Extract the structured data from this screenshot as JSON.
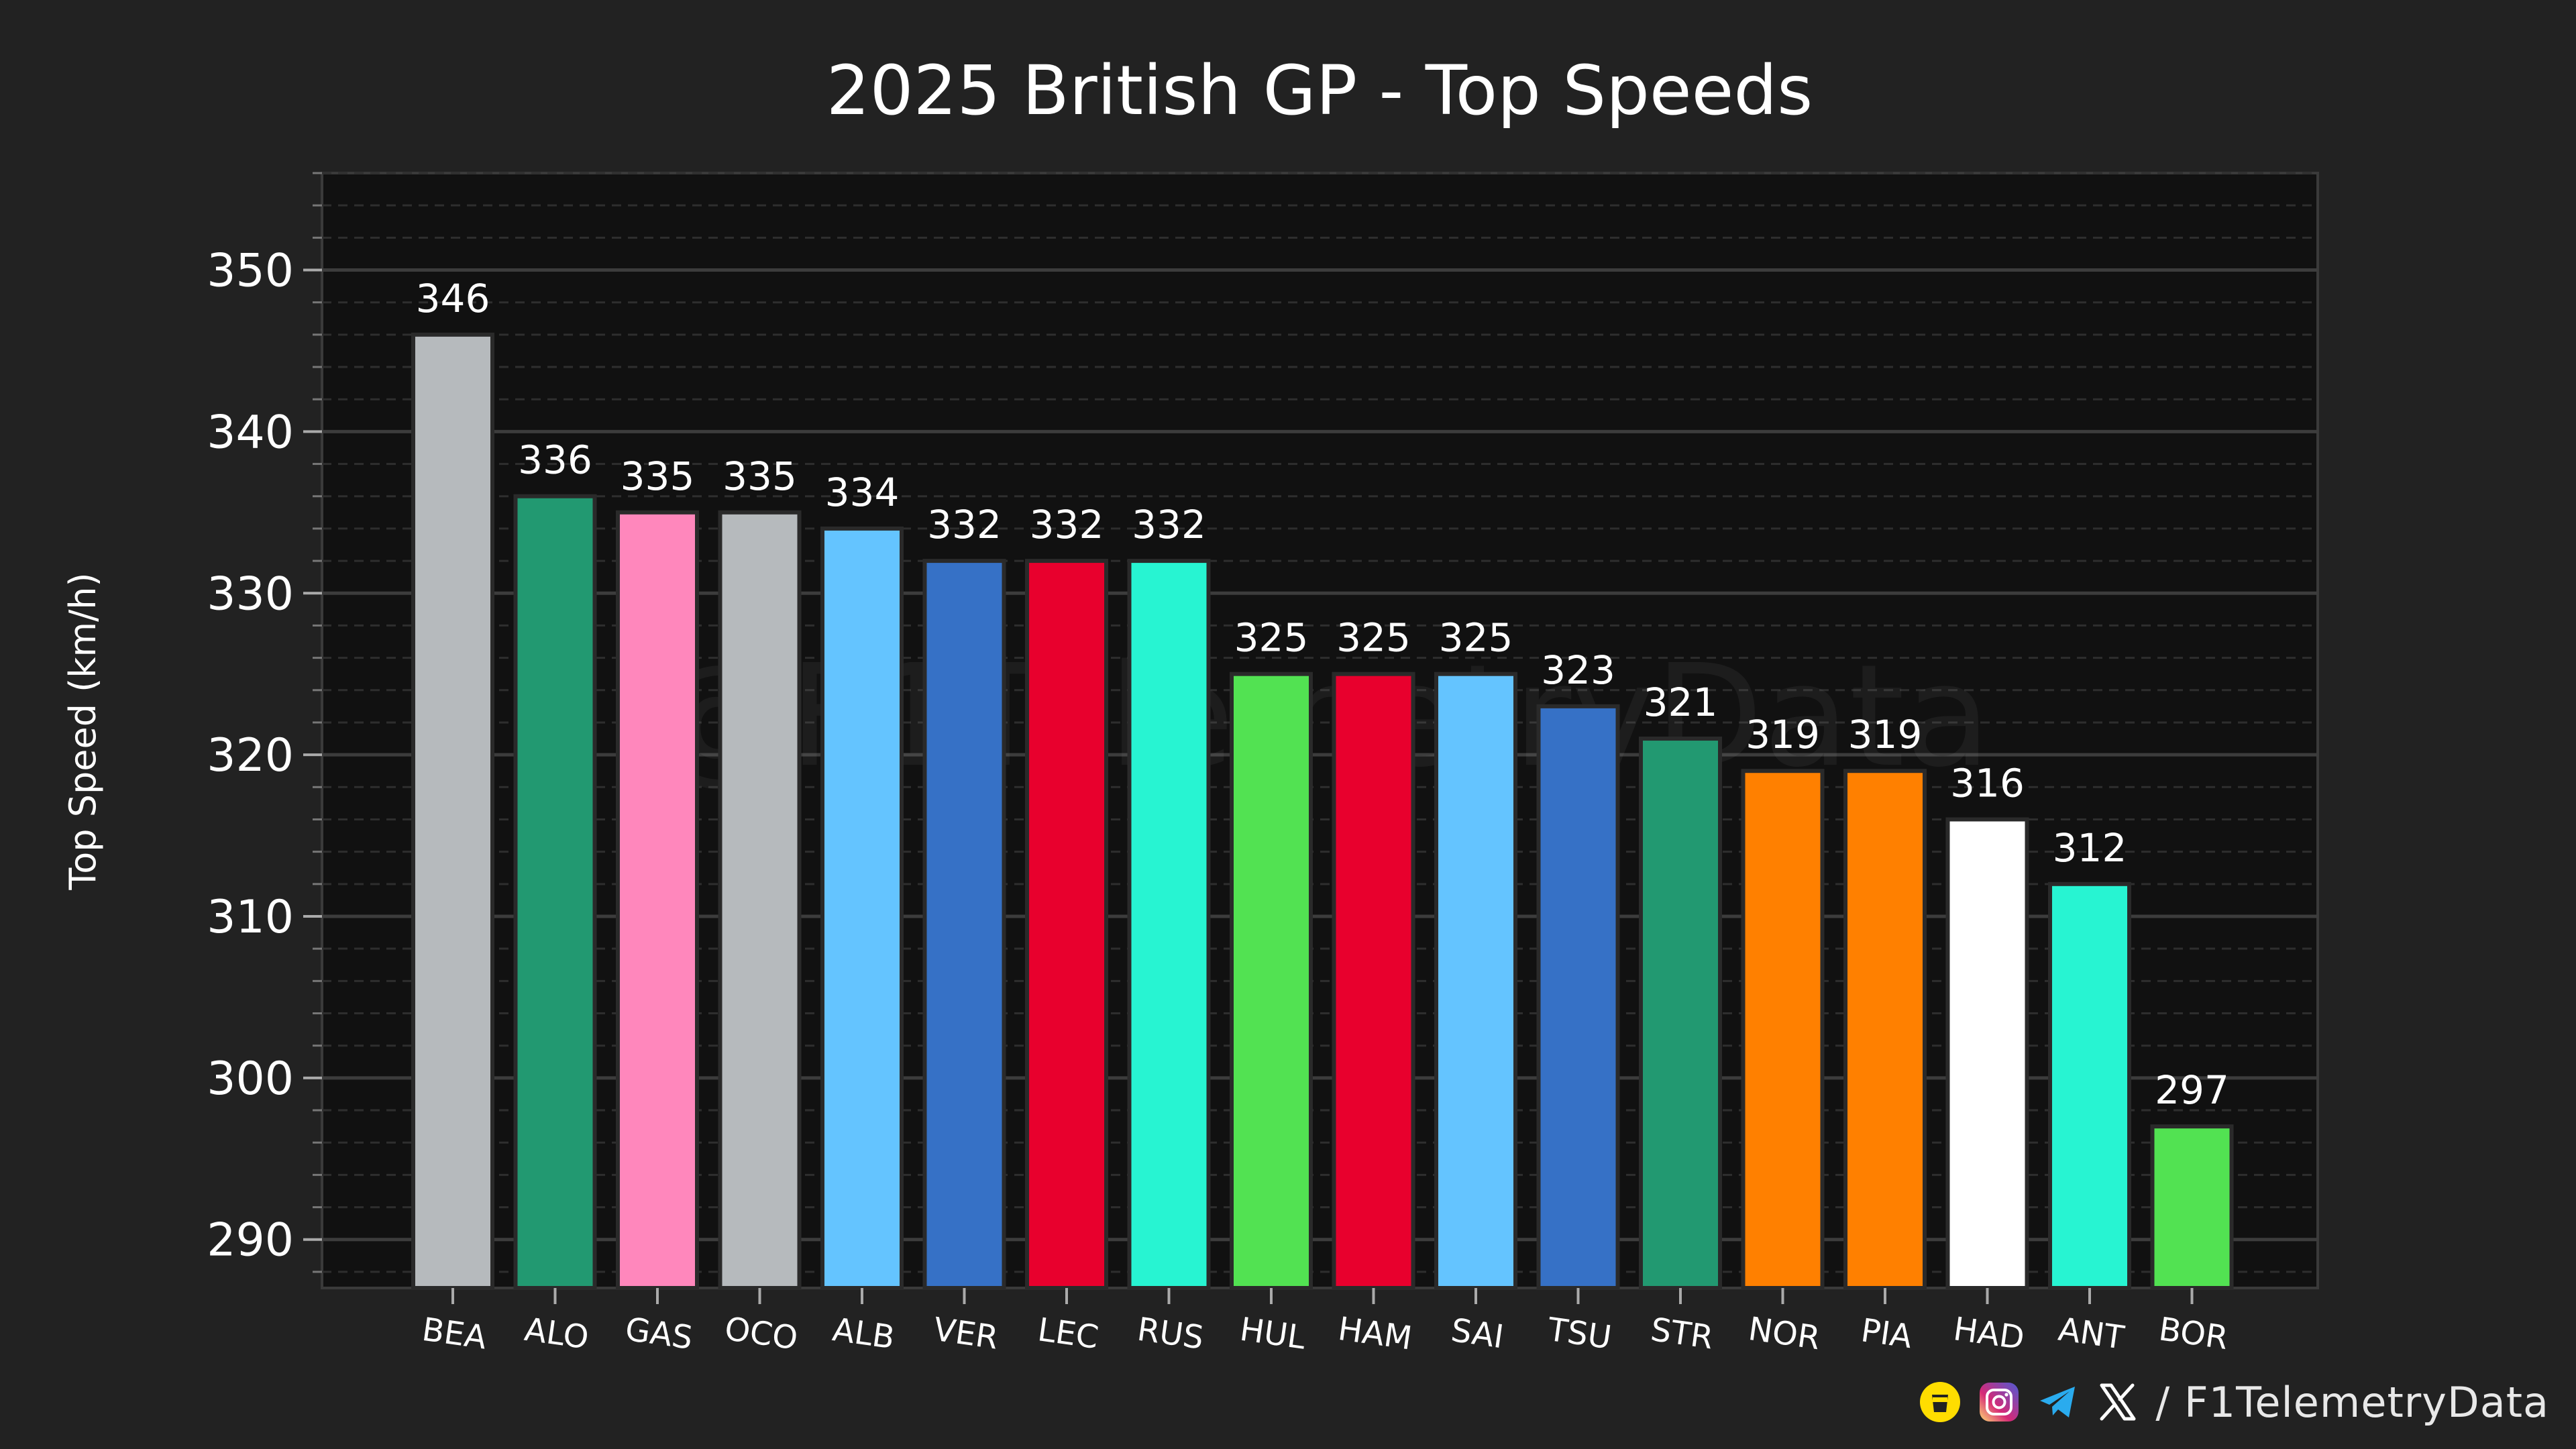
{
  "chart_data": {
    "type": "bar",
    "title": "2025 British GP - Top Speeds",
    "ylabel": "Top Speed (km/h)",
    "ylim": [
      287,
      356
    ],
    "yticks": [
      "290",
      "300",
      "310",
      "320",
      "330",
      "340",
      "350"
    ],
    "grid": true,
    "watermark": "@F1TelemetryData",
    "categories": [
      "BEA",
      "ALO",
      "GAS",
      "OCO",
      "ALB",
      "VER",
      "LEC",
      "RUS",
      "HUL",
      "HAM",
      "SAI",
      "TSU",
      "STR",
      "NOR",
      "PIA",
      "HAD",
      "ANT",
      "BOR"
    ],
    "values": [
      346,
      336,
      335,
      335,
      334,
      332,
      332,
      332,
      325,
      325,
      325,
      323,
      321,
      319,
      319,
      316,
      312,
      297
    ],
    "colors": [
      "#B6BABD",
      "#229971",
      "#FF87BC",
      "#B6BABD",
      "#64C4FF",
      "#3671C6",
      "#E8002D",
      "#27F4D2",
      "#52E252",
      "#E8002D",
      "#64C4FF",
      "#3671C6",
      "#229971",
      "#FF8000",
      "#FF8000",
      "#FFFFFF",
      "#27F4D2",
      "#52E252"
    ]
  },
  "footer": {
    "handle": "/ F1TelemetryData",
    "icons": [
      "buymeacoffee-icon",
      "instagram-icon",
      "telegram-icon",
      "x-icon"
    ]
  }
}
